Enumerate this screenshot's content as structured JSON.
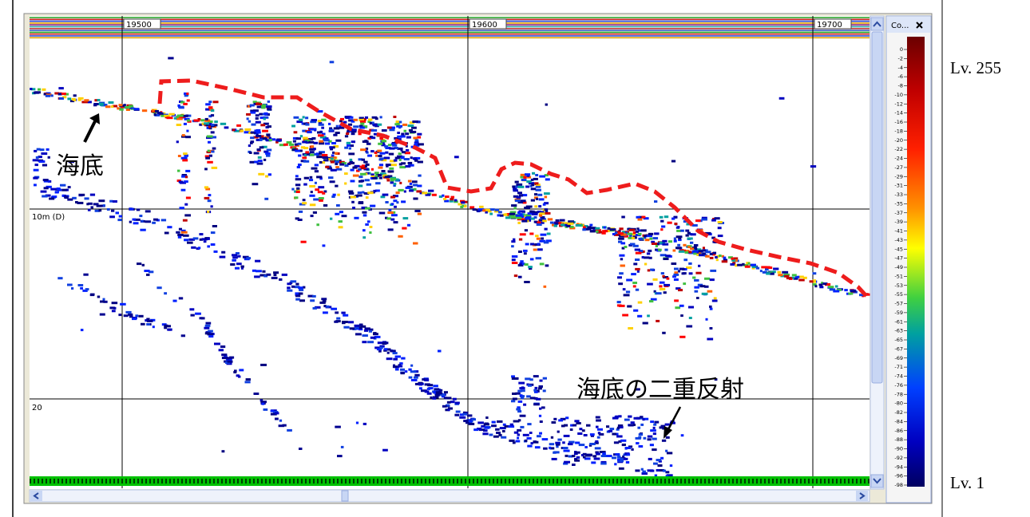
{
  "echogram": {
    "ping_labels": [
      "19500",
      "19600",
      "19700"
    ],
    "depth_labels": [
      "10m (D)",
      "20"
    ]
  },
  "annotations": {
    "seabed": "海底",
    "double_reflection": "海底の二重反射"
  },
  "colorbar": {
    "title": "Co...",
    "ticks": [
      "0",
      "-2",
      "-4",
      "-6",
      "-8",
      "-10",
      "-12",
      "-14",
      "-16",
      "-18",
      "-20",
      "-22",
      "-24",
      "-27",
      "-29",
      "-31",
      "-33",
      "-35",
      "-37",
      "-39",
      "-41",
      "-43",
      "-45",
      "-47",
      "-49",
      "-51",
      "-53",
      "-55",
      "-57",
      "-59",
      "-61",
      "-63",
      "-65",
      "-67",
      "-69",
      "-71",
      "-74",
      "-76",
      "-78",
      "-80",
      "-82",
      "-84",
      "-86",
      "-88",
      "-90",
      "-92",
      "-94",
      "-96",
      "-98"
    ]
  },
  "levels": {
    "max": "Lv. 255",
    "min": "Lv. 1"
  }
}
